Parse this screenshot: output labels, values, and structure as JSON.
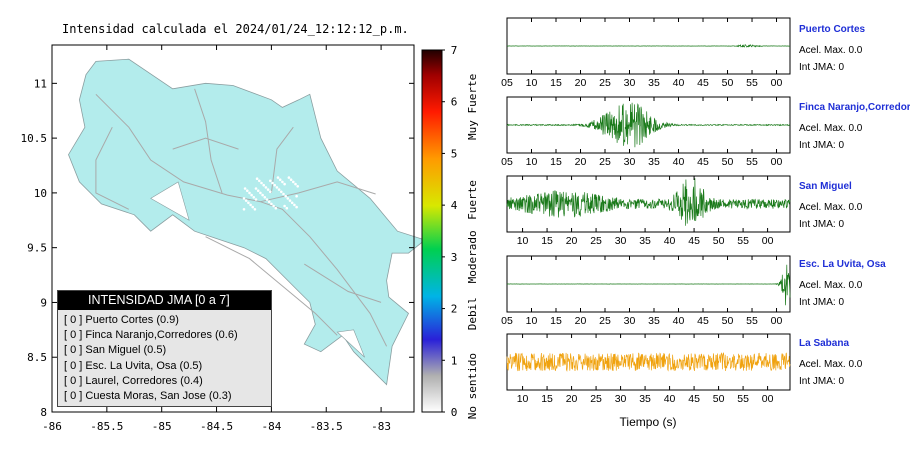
{
  "map": {
    "title": "Intensidad calculada el 2024/01/24_12:12:12_p.m.",
    "lon_ticks": [
      "-86",
      "-85.5",
      "-85",
      "-84.5",
      "-84",
      "-83.5",
      "-83"
    ],
    "lat_ticks": [
      "8",
      "8.5",
      "9",
      "9.5",
      "10",
      "10.5",
      "11"
    ],
    "xlim": [
      -86,
      -82.7
    ],
    "ylim": [
      8,
      11.35
    ],
    "land_color": "#b3ecec"
  },
  "colorbar": {
    "ticks": [
      "0",
      "1",
      "2",
      "3",
      "4",
      "5",
      "6",
      "7"
    ],
    "labels": [
      "No sentido",
      "Debil",
      "Moderado",
      "Fuerte",
      "Muy Fuerte"
    ]
  },
  "legend": {
    "header": "INTENSIDAD JMA [0 a 7]",
    "items": [
      "[ 0 ]  Puerto Cortes (0.9)",
      "[ 0 ]  Finca Naranjo,Corredores (0.6)",
      "[ 0 ]  San Miguel (0.5)",
      "[ 0 ]  Esc. La Uvita, Osa (0.5)",
      "[ 0 ]  Laurel, Corredores (0.4)",
      "[ 0 ]  Cuesta Moras, San Jose (0.3)"
    ]
  },
  "chart_data": {
    "type": "line",
    "xlabel": "Tiempo (s)",
    "panels": [
      {
        "name": "Puerto Cortes",
        "accel": "Acel. Max. 0.0",
        "jma": "Int JMA: 0",
        "color": "#1a7a1a",
        "ticks": [
          "05",
          "10",
          "15",
          "20",
          "25",
          "30",
          "35",
          "40",
          "45",
          "50",
          "55",
          "00"
        ],
        "first_tick_frac": 0.0,
        "burst": [
          [
            0.85,
            0.04,
            0.05
          ]
        ],
        "base": 0.004
      },
      {
        "name": "Finca Naranjo,Corredores",
        "accel": "Acel. Max. 0.0",
        "jma": "Int JMA: 0",
        "color": "#1a7a1a",
        "ticks": [
          "05",
          "10",
          "15",
          "20",
          "25",
          "30",
          "35",
          "40",
          "45",
          "50",
          "55",
          "00"
        ],
        "first_tick_frac": 0.0,
        "burst": [
          [
            0.44,
            0.08,
            0.85
          ],
          [
            0.35,
            0.06,
            0.2
          ]
        ],
        "base": 0.02
      },
      {
        "name": "San Miguel",
        "accel": "Acel. Max. 0.0",
        "jma": "Int JMA: 0",
        "color": "#1a7a1a",
        "ticks": [
          "10",
          "15",
          "20",
          "25",
          "30",
          "35",
          "40",
          "45",
          "50",
          "55",
          "00",
          "05"
        ],
        "first_tick_frac": 0.055,
        "burst": [
          [
            0.65,
            0.05,
            0.9
          ],
          [
            0.2,
            0.15,
            0.35
          ]
        ],
        "base": 0.18
      },
      {
        "name": "Esc. La Uvita, Osa",
        "accel": "Acel. Max. 0.0",
        "jma": "Int JMA: 0",
        "color": "#1a7a1a",
        "ticks": [
          "05",
          "10",
          "15",
          "20",
          "25",
          "30",
          "35",
          "40",
          "45",
          "50",
          "55",
          "00"
        ],
        "first_tick_frac": 0.0,
        "burst": [
          [
            0.99,
            0.02,
            0.9
          ]
        ],
        "base": 0.003
      },
      {
        "name": "La Sabana",
        "accel": "Acel. Max. 0.0",
        "jma": "Int JMA: 0",
        "color": "#f0a20e",
        "ticks": [
          "10",
          "15",
          "20",
          "25",
          "30",
          "35",
          "40",
          "45",
          "50",
          "55",
          "00",
          "05"
        ],
        "first_tick_frac": 0.055,
        "burst": [],
        "base": 0.35
      }
    ]
  }
}
